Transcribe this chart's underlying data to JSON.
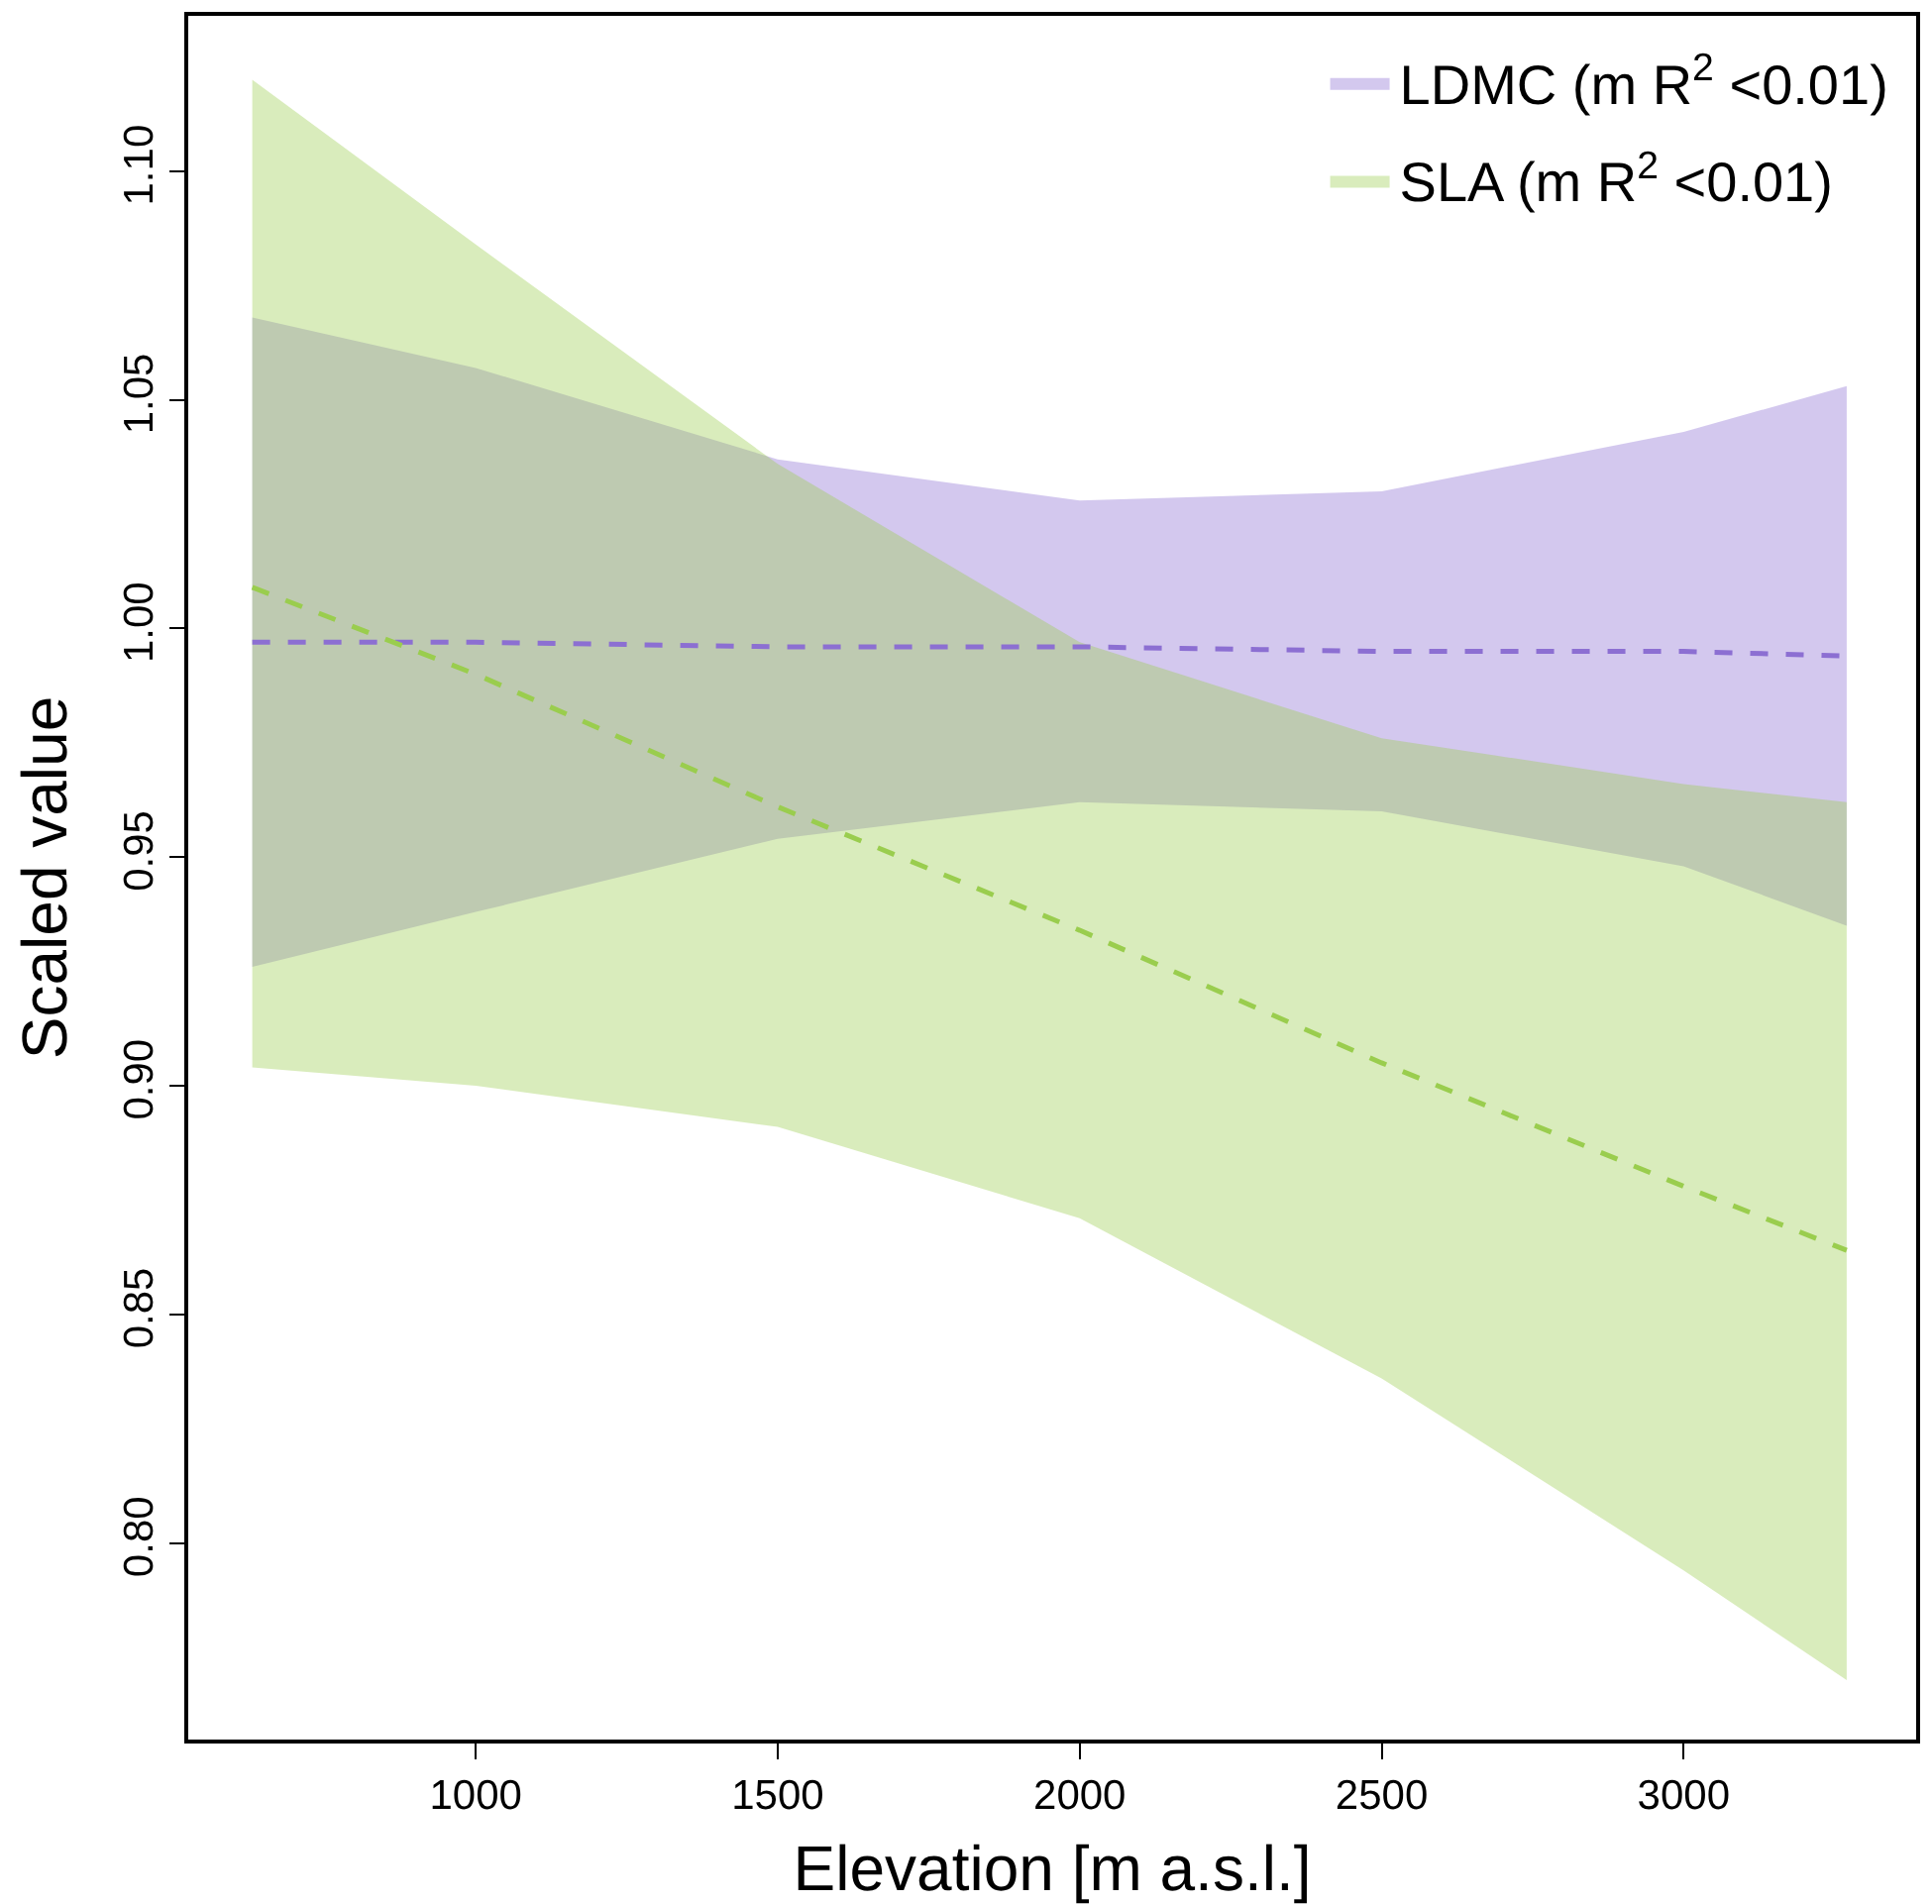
{
  "chart_data": {
    "type": "line",
    "xlabel": "Elevation [m a.s.l.]",
    "ylabel": "Scaled value",
    "x": [
      630,
      1000,
      1500,
      2000,
      2500,
      3000,
      3270
    ],
    "series": [
      {
        "name": "LDMC (m R$^{2}$ <0.01)",
        "color": "#8c6fd2",
        "values": [
          0.997,
          0.997,
          0.996,
          0.996,
          0.995,
          0.995,
          0.994
        ],
        "lower": [
          0.926,
          0.938,
          0.954,
          0.962,
          0.96,
          0.948,
          0.935
        ],
        "upper": [
          1.068,
          1.057,
          1.037,
          1.028,
          1.03,
          1.043,
          1.053
        ]
      },
      {
        "name": "SLA (m R$^{2}$ <0.01)",
        "color": "#9acd4e",
        "values": [
          1.009,
          0.99,
          0.961,
          0.934,
          0.905,
          0.878,
          0.864
        ],
        "lower": [
          0.904,
          0.9,
          0.891,
          0.871,
          0.836,
          0.794,
          0.77
        ],
        "upper": [
          1.12,
          1.084,
          1.036,
          0.997,
          0.976,
          0.966,
          0.962
        ]
      }
    ],
    "xlim": [
      524,
      3385
    ],
    "ylim": [
      0.757,
      1.134
    ],
    "xticks": [
      1000,
      1500,
      2000,
      2500,
      3000
    ],
    "yticks": [
      {
        "value": 0.8,
        "label": "0.80"
      },
      {
        "value": 0.85,
        "label": "0.85"
      },
      {
        "value": 0.9,
        "label": "0.90"
      },
      {
        "value": 0.95,
        "label": "0.95"
      },
      {
        "value": 1.0,
        "label": "1.00"
      },
      {
        "value": 1.05,
        "label": "1.05"
      },
      {
        "value": 1.1,
        "label": "1.10"
      }
    ],
    "legend": "top right",
    "line_style": "dashed",
    "marker": "none"
  }
}
